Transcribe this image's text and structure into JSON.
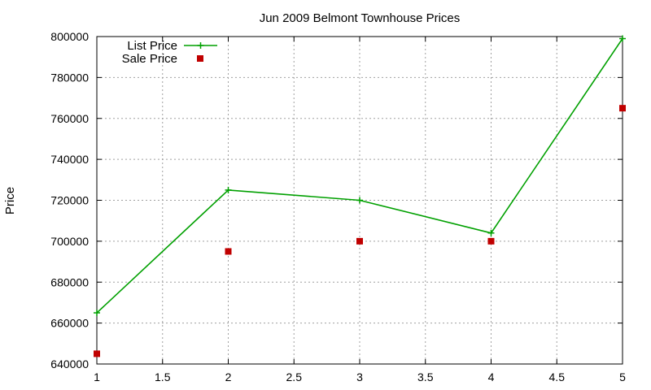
{
  "chart_data": {
    "type": "line",
    "title": "Jun 2009 Belmont Townhouse Prices",
    "xlabel": "",
    "ylabel": "Price",
    "xlim": [
      1,
      5
    ],
    "ylim": [
      640000,
      800000
    ],
    "xticks": [
      "1",
      "1.5",
      "2",
      "2.5",
      "3",
      "3.5",
      "4",
      "4.5",
      "5"
    ],
    "yticks": [
      "640000",
      "660000",
      "680000",
      "700000",
      "720000",
      "740000",
      "760000",
      "780000",
      "800000"
    ],
    "grid": true,
    "legend_position": "top-left",
    "series": [
      {
        "name": "List Price",
        "style": "lines+points",
        "marker": "plus",
        "color": "#00a000",
        "x": [
          1,
          2,
          3,
          4,
          5
        ],
        "y": [
          665000,
          725000,
          720000,
          704000,
          799000
        ]
      },
      {
        "name": "Sale Price",
        "style": "points",
        "marker": "square",
        "color": "#c00000",
        "x": [
          1,
          2,
          3,
          4,
          5
        ],
        "y": [
          645000,
          695000,
          700000,
          700000,
          765000
        ]
      }
    ]
  }
}
